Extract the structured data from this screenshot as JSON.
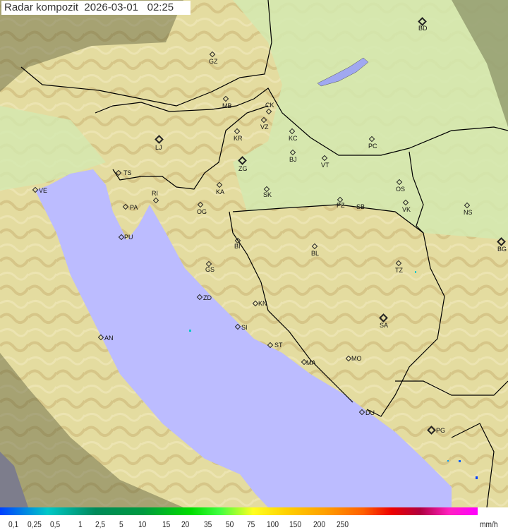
{
  "title": "Radar kompozit  2026-03-01   02:25",
  "colors": {
    "sea": "#bcbcff",
    "land": "#e6e3a6",
    "hills": "#d9c98a",
    "plain": "#d6ecb4",
    "outside": "#7a7a56",
    "border": "#000000"
  },
  "cities": [
    {
      "code": "GZ"
    },
    {
      "code": "BD",
      "capital": true
    },
    {
      "code": "MB"
    },
    {
      "code": "CK"
    },
    {
      "code": "VZ"
    },
    {
      "code": "KR"
    },
    {
      "code": "KC"
    },
    {
      "code": "PC"
    },
    {
      "code": "LJ",
      "capital": true
    },
    {
      "code": "ZG",
      "capital": true
    },
    {
      "code": "BJ"
    },
    {
      "code": "VT"
    },
    {
      "code": "TS"
    },
    {
      "code": "VE"
    },
    {
      "code": "KA"
    },
    {
      "code": "SK"
    },
    {
      "code": "OS"
    },
    {
      "code": "RI"
    },
    {
      "code": "PA"
    },
    {
      "code": "OG"
    },
    {
      "code": "PZ"
    },
    {
      "code": "SB"
    },
    {
      "code": "VK"
    },
    {
      "code": "NS"
    },
    {
      "code": "PU"
    },
    {
      "code": "BI"
    },
    {
      "code": "BL"
    },
    {
      "code": "BG",
      "capital": true
    },
    {
      "code": "GS"
    },
    {
      "code": "TZ"
    },
    {
      "code": "ZD"
    },
    {
      "code": "KN"
    },
    {
      "code": "SA",
      "capital": true
    },
    {
      "code": "SI"
    },
    {
      "code": "AN"
    },
    {
      "code": "ST"
    },
    {
      "code": "MA"
    },
    {
      "code": "MO"
    },
    {
      "code": "DU"
    },
    {
      "code": "PG",
      "capital": true
    }
  ],
  "legend": {
    "ticks": [
      "0,1",
      "0,25",
      "0,5",
      "1",
      "2,5",
      "5",
      "10",
      "15",
      "20",
      "35",
      "50",
      "75",
      "100",
      "150",
      "200",
      "250"
    ],
    "unit": "mm/h"
  }
}
